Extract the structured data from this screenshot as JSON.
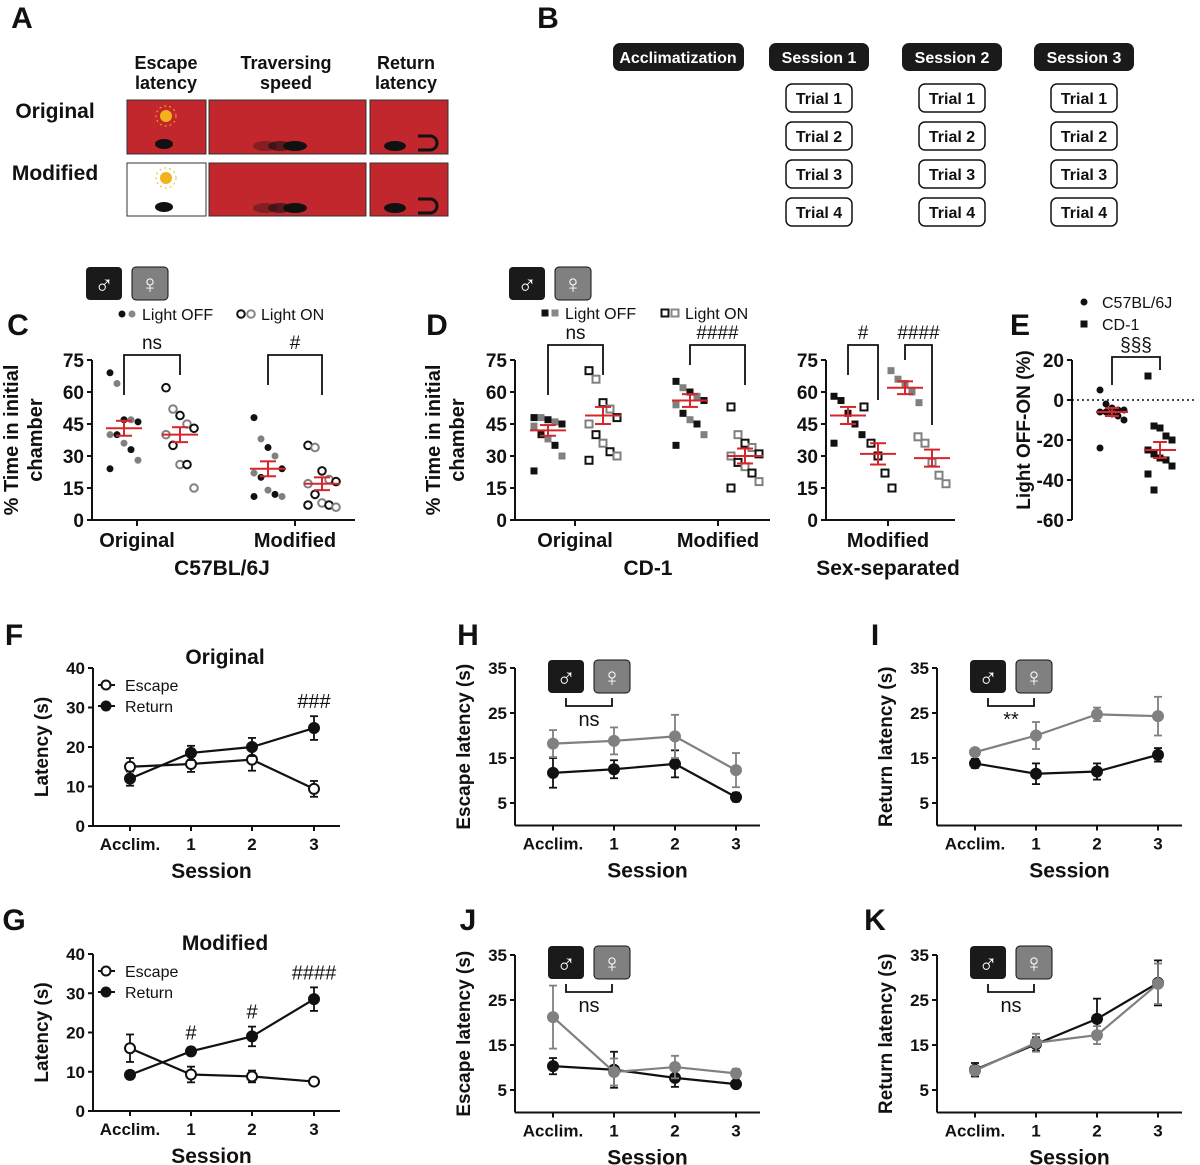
{
  "panel_letters": {
    "A": "A",
    "B": "B",
    "C": "C",
    "D": "D",
    "E": "E",
    "F": "F",
    "G": "G",
    "H": "H",
    "I": "I",
    "J": "J",
    "K": "K"
  },
  "panel_a": {
    "columns": [
      "Escape",
      "latency",
      "Traversing",
      "speed",
      "Return",
      "latency"
    ],
    "rows": [
      "Original",
      "Modified"
    ],
    "colors": {
      "arena": "#c1272d",
      "light": "#f2b21b"
    }
  },
  "panel_b": {
    "acclimatization": "Acclimatization",
    "sessions": [
      "Session 1",
      "Session 2",
      "Session 3"
    ],
    "trials": [
      "Trial 1",
      "Trial 2",
      "Trial 3",
      "Trial 4"
    ]
  },
  "sex_icons": {
    "male": "♂",
    "female": "♀",
    "male_color": "#1a1a1a",
    "female_color": "#808080"
  },
  "chart_data": [
    {
      "panel": "C",
      "type": "scatter",
      "ylabel": [
        "% Time in initial",
        "chamber"
      ],
      "xlabel": "C57BL/6J",
      "ylim": [
        0,
        75
      ],
      "yticks": [
        0,
        15,
        30,
        45,
        60,
        75
      ],
      "legend": [
        "Light OFF",
        "Light ON"
      ],
      "categories": [
        "Original",
        "Modified"
      ],
      "groups": [
        {
          "category": "Original",
          "condition": "Light OFF",
          "mean": 43,
          "sem": 3.5,
          "values": [
            69,
            64,
            47,
            47,
            46,
            40,
            40,
            36,
            33,
            28,
            24
          ]
        },
        {
          "category": "Original",
          "condition": "Light ON",
          "mean": 40,
          "sem": 3.5,
          "values": [
            62,
            52,
            49,
            45,
            43,
            40,
            35,
            26,
            26,
            15
          ]
        },
        {
          "category": "Modified",
          "condition": "Light OFF",
          "mean": 24,
          "sem": 3.5,
          "values": [
            48,
            38,
            34,
            30,
            24,
            22,
            20,
            14,
            12,
            11,
            11
          ]
        },
        {
          "category": "Modified",
          "condition": "Light ON",
          "mean": 17,
          "sem": 3,
          "values": [
            35,
            34,
            23,
            19,
            18,
            17,
            12,
            8,
            7,
            6,
            7
          ]
        }
      ],
      "significance": [
        {
          "category": "Original",
          "text": "ns"
        },
        {
          "category": "Modified",
          "text": "#"
        }
      ]
    },
    {
      "panel": "D",
      "type": "scatter",
      "ylabel": [
        "% Time in initial",
        "chamber"
      ],
      "xlabel": "CD-1",
      "ylim": [
        0,
        75
      ],
      "yticks": [
        0,
        15,
        30,
        45,
        60,
        75
      ],
      "legend": [
        "Light OFF",
        "Light ON"
      ],
      "categories": [
        "Original",
        "Modified"
      ],
      "groups": [
        {
          "category": "Original",
          "condition": "Light OFF",
          "mean": 42,
          "sem": 2.5,
          "values": [
            48,
            48,
            47,
            46,
            45,
            44,
            40,
            38,
            35,
            30,
            23
          ]
        },
        {
          "category": "Original",
          "condition": "Light ON",
          "mean": 49,
          "sem": 4,
          "values": [
            70,
            66,
            55,
            52,
            48,
            45,
            40,
            36,
            32,
            30,
            28
          ]
        },
        {
          "category": "Modified",
          "condition": "Light OFF",
          "mean": 56,
          "sem": 3,
          "values": [
            65,
            62,
            60,
            58,
            56,
            54,
            50,
            47,
            45,
            40,
            35
          ]
        },
        {
          "category": "Modified",
          "condition": "Light ON",
          "mean": 30,
          "sem": 3.5,
          "values": [
            53,
            40,
            36,
            34,
            31,
            30,
            27,
            25,
            22,
            18,
            15
          ]
        }
      ],
      "significance": [
        {
          "category": "Original",
          "text": "ns"
        },
        {
          "category": "Modified",
          "text": "####"
        }
      ]
    },
    {
      "panel": "D-sex-separated",
      "type": "scatter",
      "xlabel": "Sex-separated",
      "ylim": [
        0,
        75
      ],
      "yticks": [
        0,
        15,
        30,
        45,
        60,
        75
      ],
      "categories": [
        "Modified"
      ],
      "groups": [
        {
          "sex": "male",
          "condition": "Light OFF",
          "mean": 49,
          "sem": 4,
          "values": [
            58,
            56,
            50,
            45,
            40,
            36
          ]
        },
        {
          "sex": "male",
          "condition": "Light ON",
          "mean": 31,
          "sem": 5,
          "values": [
            53,
            36,
            30,
            22,
            15
          ]
        },
        {
          "sex": "female",
          "condition": "Light OFF",
          "mean": 62,
          "sem": 3,
          "values": [
            70,
            66,
            64,
            60,
            55
          ]
        },
        {
          "sex": "female",
          "condition": "Light ON",
          "mean": 29,
          "sem": 4,
          "values": [
            39,
            36,
            27,
            21,
            17
          ]
        }
      ],
      "significance": [
        {
          "pair": "male",
          "text": "#"
        },
        {
          "pair": "female",
          "text": "####"
        }
      ]
    },
    {
      "panel": "E",
      "type": "scatter",
      "ylabel": "Light OFF-ON (%)",
      "ylim": [
        -60,
        20
      ],
      "yticks": [
        -60,
        -40,
        -20,
        0,
        20
      ],
      "legend": [
        "C57BL/6J",
        "CD-1"
      ],
      "groups": [
        {
          "strain": "C57BL/6J",
          "mean": -6,
          "sem": 2,
          "values": [
            5,
            -2,
            -4,
            -5,
            -5,
            -6,
            -6,
            -7,
            -8,
            -10,
            -24
          ]
        },
        {
          "strain": "CD-1",
          "mean": -25,
          "sem": 4,
          "values": [
            12,
            -13,
            -14,
            -18,
            -20,
            -25,
            -27,
            -29,
            -30,
            -33,
            -37,
            -45
          ]
        }
      ],
      "significance": [
        {
          "text": "§§§"
        }
      ]
    },
    {
      "panel": "F",
      "type": "line",
      "title": "Original",
      "xlabel": "Session",
      "ylabel": "Latency (s)",
      "categories": [
        "Acclim.",
        "1",
        "2",
        "3"
      ],
      "ylim": [
        0,
        40
      ],
      "yticks": [
        0,
        10,
        20,
        30,
        40
      ],
      "series": [
        {
          "name": "Escape",
          "marker": "open",
          "values": [
            15,
            15.7,
            16.8,
            9.4
          ],
          "sem": [
            2.2,
            2,
            2.8,
            2
          ]
        },
        {
          "name": "Return",
          "marker": "filled",
          "values": [
            12,
            18.5,
            20,
            24.8
          ],
          "sem": [
            1.8,
            1.8,
            2.3,
            3
          ]
        }
      ],
      "annotations": [
        {
          "category": "3",
          "text": "###"
        }
      ]
    },
    {
      "panel": "G",
      "type": "line",
      "title": "Modified",
      "xlabel": "Session",
      "ylabel": "Latency (s)",
      "categories": [
        "Acclim.",
        "1",
        "2",
        "3"
      ],
      "ylim": [
        0,
        40
      ],
      "yticks": [
        0,
        10,
        20,
        30,
        40
      ],
      "series": [
        {
          "name": "Escape",
          "marker": "open",
          "values": [
            16,
            9.3,
            8.8,
            7.5
          ],
          "sem": [
            3.5,
            2,
            1.5,
            0.5
          ]
        },
        {
          "name": "Return",
          "marker": "filled",
          "values": [
            9.2,
            15.2,
            19,
            28.5
          ],
          "sem": [
            1,
            1,
            2.5,
            3
          ]
        }
      ],
      "annotations": [
        {
          "category": "1",
          "text": "#"
        },
        {
          "category": "2",
          "text": "#"
        },
        {
          "category": "3",
          "text": "####"
        }
      ]
    },
    {
      "panel": "H",
      "type": "line",
      "xlabel": "Session",
      "ylabel": "Escape latency (s)",
      "categories": [
        "Acclim.",
        "1",
        "2",
        "3"
      ],
      "ylim": [
        0,
        35
      ],
      "yticks": [
        5,
        15,
        25,
        35
      ],
      "series": [
        {
          "name": "♂",
          "values": [
            11.7,
            12.5,
            13.7,
            6.3
          ],
          "sem": [
            3.3,
            2,
            3,
            1
          ]
        },
        {
          "name": "♀",
          "values": [
            18.2,
            18.8,
            19.8,
            12.3
          ],
          "sem": [
            3,
            3,
            4.8,
            3.8
          ]
        }
      ],
      "significance": "ns"
    },
    {
      "panel": "I",
      "type": "line",
      "xlabel": "Session",
      "ylabel": "Return latency (s)",
      "categories": [
        "Acclim.",
        "1",
        "2",
        "3"
      ],
      "ylim": [
        0,
        35
      ],
      "yticks": [
        5,
        15,
        25,
        35
      ],
      "series": [
        {
          "name": "♂",
          "values": [
            13.8,
            11.5,
            12,
            15.7
          ],
          "sem": [
            1,
            2.3,
            1.8,
            1.5
          ]
        },
        {
          "name": "♀",
          "values": [
            16.3,
            20,
            24.7,
            24.3
          ],
          "sem": [
            0.8,
            3,
            1.5,
            4.3
          ]
        }
      ],
      "significance": "**"
    },
    {
      "panel": "J",
      "type": "line",
      "xlabel": "Session",
      "ylabel": "Escape latency (s)",
      "categories": [
        "Acclim.",
        "1",
        "2",
        "3"
      ],
      "ylim": [
        0,
        35
      ],
      "yticks": [
        5,
        15,
        25,
        35
      ],
      "series": [
        {
          "name": "♂",
          "values": [
            10.3,
            9.5,
            7.7,
            6.3
          ],
          "sem": [
            1.8,
            4,
            2,
            0.5
          ]
        },
        {
          "name": "♀",
          "values": [
            21.2,
            9,
            10.1,
            8.7
          ],
          "sem": [
            7,
            3,
            2.5,
            1
          ]
        }
      ],
      "significance": "ns"
    },
    {
      "panel": "K",
      "type": "line",
      "xlabel": "Session",
      "ylabel": "Return latency (s)",
      "categories": [
        "Acclim.",
        "1",
        "2",
        "3"
      ],
      "ylim": [
        0,
        35
      ],
      "yticks": [
        5,
        15,
        25,
        35
      ],
      "series": [
        {
          "name": "♂",
          "values": [
            9.5,
            15.2,
            20.8,
            28.8
          ],
          "sem": [
            1.5,
            1.5,
            4.5,
            5
          ]
        },
        {
          "name": "♀",
          "values": [
            9.3,
            15.5,
            17.2,
            28.6
          ],
          "sem": [
            1,
            2,
            2,
            4.5
          ]
        }
      ],
      "significance": "ns"
    }
  ],
  "colors": {
    "mean_bar": "#d7262b",
    "male": "#111111",
    "female": "#808080"
  }
}
